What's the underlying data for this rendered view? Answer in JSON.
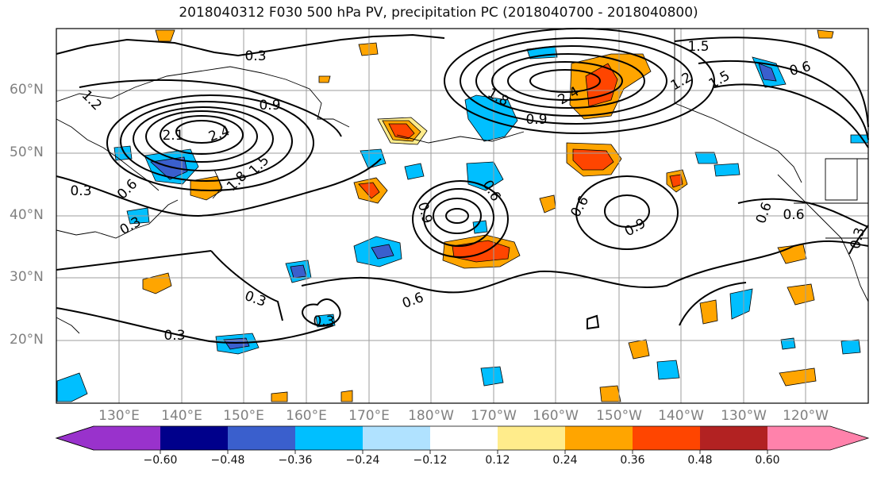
{
  "title": "2018040312 F030 500 hPa PV, precipitation PC (2018040700 - 2018040800)",
  "lat_labels": [
    "60°N",
    "50°N",
    "40°N",
    "30°N",
    "20°N"
  ],
  "lon_labels": [
    "130°E",
    "140°E",
    "150°E",
    "160°E",
    "170°E",
    "180°W",
    "170°W",
    "160°W",
    "150°W",
    "140°W",
    "130°W",
    "120°W"
  ],
  "contour_labels": [
    "0.3",
    "1.2",
    "0.9",
    "1.5",
    "2.1",
    "2.4",
    "1.8",
    "0.3",
    "0.6",
    "0.3",
    "1.5",
    "1.2",
    "1.5",
    "1.8",
    "2.4",
    "0.9",
    "0.6",
    "0.6",
    "0.9",
    "0.6",
    "0.9",
    "0.6",
    "0.3",
    "0.3",
    "0.6",
    "0.3",
    "0.3",
    "0.6"
  ],
  "colorbar": {
    "colors": [
      "#9932cc",
      "#00008b",
      "#3a5fcd",
      "#00bfff",
      "#b0e2ff",
      "#ffffff",
      "#ffec8b",
      "#ffa500",
      "#ff4500",
      "#b22222",
      "#ff82ab"
    ],
    "tick_labels": [
      "−0.60",
      "−0.48",
      "−0.36",
      "−0.24",
      "−0.12",
      "0.12",
      "0.24",
      "0.36",
      "0.48",
      "0.60"
    ]
  }
}
